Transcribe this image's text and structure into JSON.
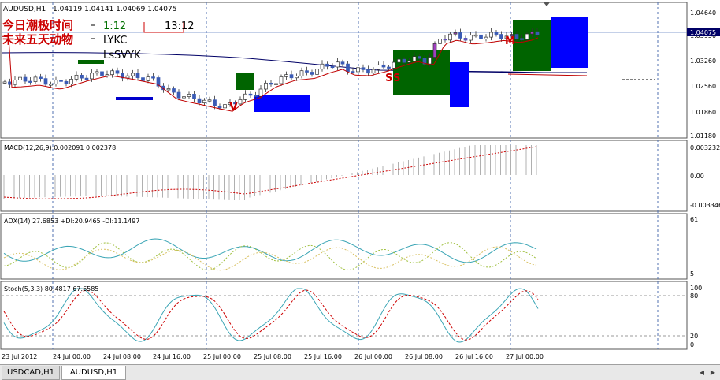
{
  "symbol_info": {
    "symbol": "AUDUSD,H1",
    "ohlc": "1.04119 1.04141 1.04069 1.04075"
  },
  "overlay": {
    "tide_label": "今日潮极时间",
    "tide_time1": "1:12",
    "tide_time2": "13:12",
    "animal_label": "未来五天动物",
    "animal_value": "LYKC",
    "extra_value": "LsSVYK",
    "v_marker": "V",
    "s_marker": "S",
    "s_marker2": "S",
    "m_marker": "M"
  },
  "price_axis": {
    "ticks": [
      "1.04640",
      "1.03950",
      "1.03260",
      "1.02560",
      "1.01860",
      "1.01180"
    ],
    "current": "1.04075"
  },
  "macd": {
    "label": "MACD(12,26,9) 0.002091 0.002378",
    "ticks": [
      "0.003232",
      "0.00",
      "-0.003346"
    ]
  },
  "adx": {
    "label": "ADX(14) 27.6853 +DI:20.9465 -DI:11.1497",
    "ticks": [
      "61",
      "5"
    ]
  },
  "stoch": {
    "label": "Stoch(5,3,3) 80.4817 67.6585",
    "ticks": [
      "100",
      "80",
      "20",
      "0"
    ]
  },
  "time_axis": {
    "labels": [
      "23 Jul 2012",
      "24 Jul 00:00",
      "24 Jul 08:00",
      "24 Jul 16:00",
      "25 Jul 00:00",
      "25 Jul 08:00",
      "25 Jul 16:00",
      "26 Jul 00:00",
      "26 Jul 08:00",
      "26 Jul 16:00",
      "27 Jul 00:00"
    ]
  },
  "tabs": [
    {
      "label": "USDCAD,H1",
      "active": false
    },
    {
      "label": "AUDUSD,H1",
      "active": true
    }
  ],
  "colors": {
    "bull": "#4a73c8",
    "bear": "#3a5bb5",
    "ma_red": "#c00000",
    "ma_navy": "#000066",
    "box_green": "#006400",
    "box_blue": "#0000ff",
    "overlay_red": "#cc0000",
    "stoch_main": "#3aa5b5",
    "stoch_signal": "#cc0000",
    "macd_hist": "#b0b0b0",
    "grid": "#5070b0"
  }
}
